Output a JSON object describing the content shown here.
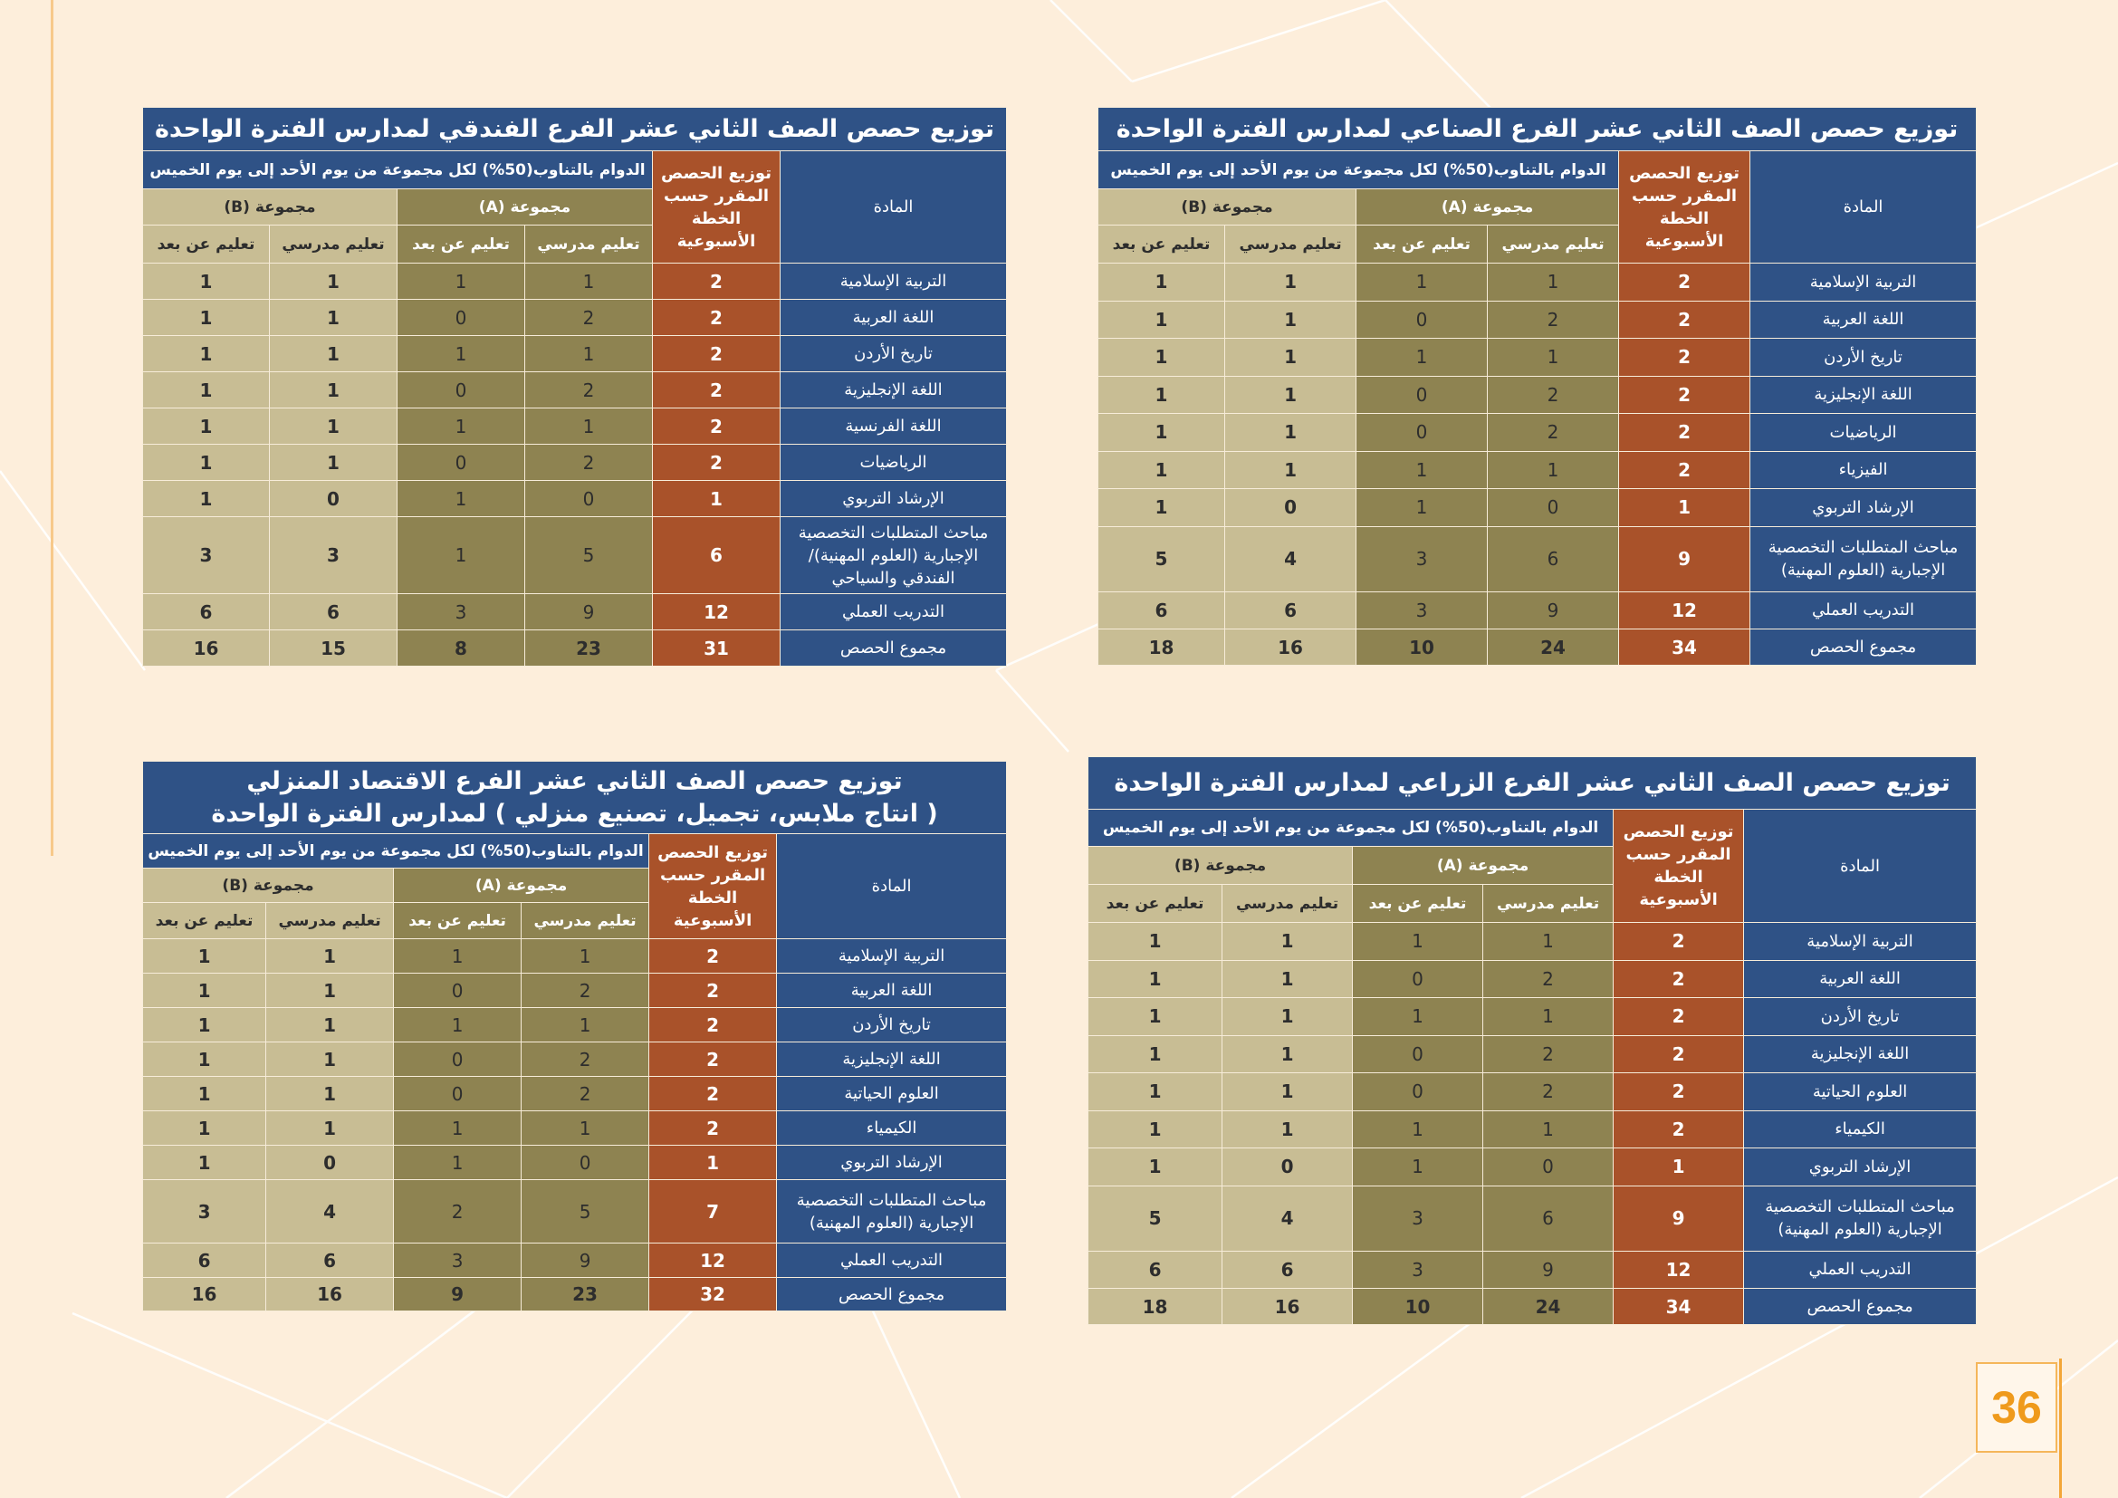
{
  "page_number": "36",
  "colors": {
    "background": "#fdeedb",
    "title_blue": "#2f5286",
    "plan_orange": "#a9522a",
    "group_a": "#8e8351",
    "group_b": "#c8bd94",
    "page_number": "#ef9a1c"
  },
  "tables": [
    {
      "id": "industrial",
      "title_lines": [
        "توزيع حصص الصف الثاني عشر الفرع الصناعي لمدارس الفترة الواحدة"
      ],
      "subject_header": "المادة",
      "plan_header": "توزيع الحصص المقرر حسب الخطة الأسبوعية",
      "rotation_header": "الدوام بالتناوب(50%) لكل مجموعة من يوم الأحد إلى يوم الخميس",
      "group_a": "مجموعة (A)",
      "group_b": "مجموعة (B)",
      "school_learning": "تعليم مدرسي",
      "remote_learning": "تعليم عن بعد",
      "rows": [
        {
          "subject": "التربية الإسلامية",
          "plan": "2",
          "a_school": "1",
          "a_remote": "1",
          "b_school": "1",
          "b_remote": "1"
        },
        {
          "subject": "اللغة العربية",
          "plan": "2",
          "a_school": "2",
          "a_remote": "0",
          "b_school": "1",
          "b_remote": "1"
        },
        {
          "subject": "تاريخ الأردن",
          "plan": "2",
          "a_school": "1",
          "a_remote": "1",
          "b_school": "1",
          "b_remote": "1"
        },
        {
          "subject": "اللغة الإنجليزية",
          "plan": "2",
          "a_school": "2",
          "a_remote": "0",
          "b_school": "1",
          "b_remote": "1"
        },
        {
          "subject": "الرياضيات",
          "plan": "2",
          "a_school": "2",
          "a_remote": "0",
          "b_school": "1",
          "b_remote": "1"
        },
        {
          "subject": "الفيزياء",
          "plan": "2",
          "a_school": "1",
          "a_remote": "1",
          "b_school": "1",
          "b_remote": "1"
        },
        {
          "subject": "الإرشاد التربوي",
          "plan": "1",
          "a_school": "0",
          "a_remote": "1",
          "b_school": "0",
          "b_remote": "1"
        },
        {
          "subject": "مباحث المتطلبات التخصصية الإجبارية (العلوم المهنية)",
          "plan": "9",
          "a_school": "6",
          "a_remote": "3",
          "b_school": "4",
          "b_remote": "5",
          "tall": true
        },
        {
          "subject": "التدريب العملي",
          "plan": "12",
          "a_school": "9",
          "a_remote": "3",
          "b_school": "6",
          "b_remote": "6"
        },
        {
          "subject": "مجموع الحصص",
          "plan": "34",
          "a_school": "24",
          "a_remote": "10",
          "b_school": "16",
          "b_remote": "18",
          "total": true
        }
      ]
    },
    {
      "id": "hotel",
      "title_lines": [
        "توزيع حصص الصف الثاني عشر الفرع الفندقي لمدارس الفترة الواحدة"
      ],
      "subject_header": "المادة",
      "plan_header": "توزيع الحصص المقرر حسب الخطة الأسبوعية",
      "rotation_header": "الدوام بالتناوب(50%) لكل مجموعة من يوم الأحد إلى يوم الخميس",
      "group_a": "مجموعة (A)",
      "group_b": "مجموعة (B)",
      "school_learning": "تعليم مدرسي",
      "remote_learning": "تعليم عن بعد",
      "rows": [
        {
          "subject": "التربية الإسلامية",
          "plan": "2",
          "a_school": "1",
          "a_remote": "1",
          "b_school": "1",
          "b_remote": "1"
        },
        {
          "subject": "اللغة العربية",
          "plan": "2",
          "a_school": "2",
          "a_remote": "0",
          "b_school": "1",
          "b_remote": "1"
        },
        {
          "subject": "تاريخ الأردن",
          "plan": "2",
          "a_school": "1",
          "a_remote": "1",
          "b_school": "1",
          "b_remote": "1"
        },
        {
          "subject": "اللغة الإنجليزية",
          "plan": "2",
          "a_school": "2",
          "a_remote": "0",
          "b_school": "1",
          "b_remote": "1"
        },
        {
          "subject": "اللغة الفرنسية",
          "plan": "2",
          "a_school": "1",
          "a_remote": "1",
          "b_school": "1",
          "b_remote": "1"
        },
        {
          "subject": "الرياضيات",
          "plan": "2",
          "a_school": "2",
          "a_remote": "0",
          "b_school": "1",
          "b_remote": "1"
        },
        {
          "subject": "الإرشاد التربوي",
          "plan": "1",
          "a_school": "0",
          "a_remote": "1",
          "b_school": "0",
          "b_remote": "1"
        },
        {
          "subject": "مباحث المتطلبات التخصصية الإجبارية (العلوم المهنية)/ الفندقي والسياحي",
          "plan": "6",
          "a_school": "5",
          "a_remote": "1",
          "b_school": "3",
          "b_remote": "3",
          "tall": true
        },
        {
          "subject": "التدريب العملي",
          "plan": "12",
          "a_school": "9",
          "a_remote": "3",
          "b_school": "6",
          "b_remote": "6"
        },
        {
          "subject": "مجموع الحصص",
          "plan": "31",
          "a_school": "23",
          "a_remote": "8",
          "b_school": "15",
          "b_remote": "16",
          "total": true
        }
      ]
    },
    {
      "id": "agricultural",
      "title_lines": [
        "توزيع حصص الصف الثاني عشر الفرع الزراعي لمدارس الفترة الواحدة"
      ],
      "subject_header": "المادة",
      "plan_header": "توزيع الحصص المقرر حسب الخطة الأسبوعية",
      "rotation_header": "الدوام بالتناوب(50%) لكل مجموعة من يوم الأحد إلى يوم الخميس",
      "group_a": "مجموعة (A)",
      "group_b": "مجموعة (B)",
      "school_learning": "تعليم مدرسي",
      "remote_learning": "تعليم عن بعد",
      "rows": [
        {
          "subject": "التربية الإسلامية",
          "plan": "2",
          "a_school": "1",
          "a_remote": "1",
          "b_school": "1",
          "b_remote": "1"
        },
        {
          "subject": "اللغة العربية",
          "plan": "2",
          "a_school": "2",
          "a_remote": "0",
          "b_school": "1",
          "b_remote": "1"
        },
        {
          "subject": "تاريخ الأردن",
          "plan": "2",
          "a_school": "1",
          "a_remote": "1",
          "b_school": "1",
          "b_remote": "1"
        },
        {
          "subject": "اللغة الإنجليزية",
          "plan": "2",
          "a_school": "2",
          "a_remote": "0",
          "b_school": "1",
          "b_remote": "1"
        },
        {
          "subject": "العلوم الحياتية",
          "plan": "2",
          "a_school": "2",
          "a_remote": "0",
          "b_school": "1",
          "b_remote": "1"
        },
        {
          "subject": "الكيمياء",
          "plan": "2",
          "a_school": "1",
          "a_remote": "1",
          "b_school": "1",
          "b_remote": "1"
        },
        {
          "subject": "الإرشاد التربوي",
          "plan": "1",
          "a_school": "0",
          "a_remote": "1",
          "b_school": "0",
          "b_remote": "1"
        },
        {
          "subject": "مباحث المتطلبات التخصصية الإجبارية (العلوم المهنية)",
          "plan": "9",
          "a_school": "6",
          "a_remote": "3",
          "b_school": "4",
          "b_remote": "5",
          "tall": true
        },
        {
          "subject": "التدريب العملي",
          "plan": "12",
          "a_school": "9",
          "a_remote": "3",
          "b_school": "6",
          "b_remote": "6"
        },
        {
          "subject": "مجموع الحصص",
          "plan": "34",
          "a_school": "24",
          "a_remote": "10",
          "b_school": "16",
          "b_remote": "18",
          "total": true
        }
      ]
    },
    {
      "id": "home-economics",
      "title_lines": [
        "توزيع حصص الصف الثاني عشر الفرع الاقتصاد المنزلي",
        "( انتاج ملابس، تجميل، تصنيع منزلي ) لمدارس الفترة الواحدة"
      ],
      "subject_header": "المادة",
      "plan_header": "توزيع الحصص المقرر حسب الخطة الأسبوعية",
      "rotation_header": "الدوام بالتناوب(50%) لكل مجموعة من يوم الأحد إلى يوم الخميس",
      "group_a": "مجموعة (A)",
      "group_b": "مجموعة (B)",
      "school_learning": "تعليم مدرسي",
      "remote_learning": "تعليم عن بعد",
      "rows": [
        {
          "subject": "التربية الإسلامية",
          "plan": "2",
          "a_school": "1",
          "a_remote": "1",
          "b_school": "1",
          "b_remote": "1"
        },
        {
          "subject": "اللغة العربية",
          "plan": "2",
          "a_school": "2",
          "a_remote": "0",
          "b_school": "1",
          "b_remote": "1"
        },
        {
          "subject": "تاريخ الأردن",
          "plan": "2",
          "a_school": "1",
          "a_remote": "1",
          "b_school": "1",
          "b_remote": "1"
        },
        {
          "subject": "اللغة الإنجليزية",
          "plan": "2",
          "a_school": "2",
          "a_remote": "0",
          "b_school": "1",
          "b_remote": "1"
        },
        {
          "subject": "العلوم الحياتية",
          "plan": "2",
          "a_school": "2",
          "a_remote": "0",
          "b_school": "1",
          "b_remote": "1"
        },
        {
          "subject": "الكيمياء",
          "plan": "2",
          "a_school": "1",
          "a_remote": "1",
          "b_school": "1",
          "b_remote": "1"
        },
        {
          "subject": "الإرشاد التربوي",
          "plan": "1",
          "a_school": "0",
          "a_remote": "1",
          "b_school": "0",
          "b_remote": "1"
        },
        {
          "subject": "مباحث المتطلبات التخصصية الإجبارية (العلوم المهنية)",
          "plan": "7",
          "a_school": "5",
          "a_remote": "2",
          "b_school": "4",
          "b_remote": "3",
          "tall": true
        },
        {
          "subject": "التدريب العملي",
          "plan": "12",
          "a_school": "9",
          "a_remote": "3",
          "b_school": "6",
          "b_remote": "6"
        },
        {
          "subject": "مجموع الحصص",
          "plan": "32",
          "a_school": "23",
          "a_remote": "9",
          "b_school": "16",
          "b_remote": "16",
          "total": true
        }
      ]
    }
  ]
}
